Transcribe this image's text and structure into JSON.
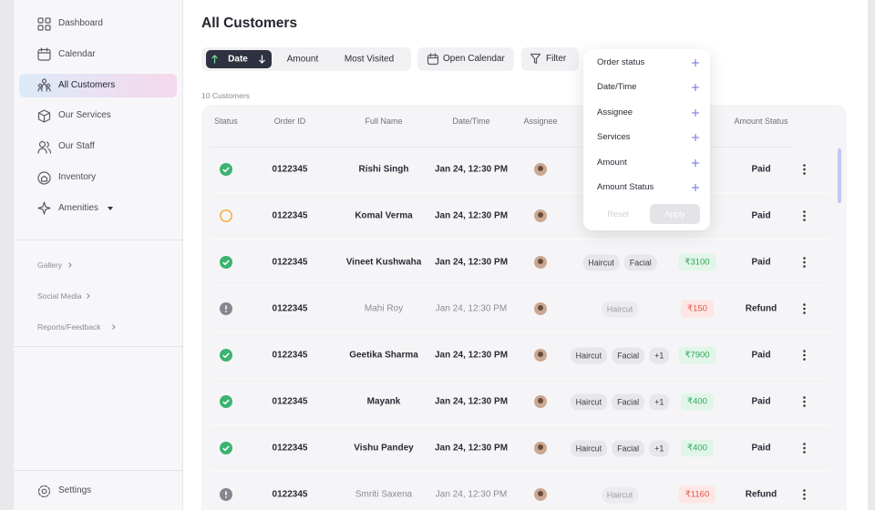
{
  "sidebar": {
    "nav": [
      "Dashboard",
      "Calendar",
      "All Customers",
      "Our Services",
      "Our Staff",
      "Inventory",
      "Amenities"
    ],
    "active": 2,
    "sections": [
      "Gallery",
      "Social Media",
      "Reports/Feedback"
    ],
    "settings": "Settings"
  },
  "main": {
    "title": "All Customers",
    "sort": [
      "Date",
      "Amount",
      "Most Visited"
    ],
    "calendar_button": "Open Calendar",
    "filter_button": "Filter",
    "count": "10 Customers",
    "table": {
      "headers": [
        "Status",
        "Order ID",
        "Full Name",
        "Date/Time",
        "Assignee"
      ],
      "amount_status_header": "Amount Status",
      "rows": [
        {
          "status": "done",
          "order_id": "0122345",
          "name": "Rishi Singh",
          "date": "Jan 24, 12:30 PM",
          "services": [],
          "amount": null,
          "amount_status": "Paid"
        },
        {
          "status": "pending",
          "order_id": "0122345",
          "name": "Komal Verma",
          "date": "Jan 24, 12:30 PM",
          "services": [],
          "amount": null,
          "amount_status": "Paid"
        },
        {
          "status": "done",
          "order_id": "0122345",
          "name": "Vineet Kushwaha",
          "date": "Jan 24, 12:30 PM",
          "services": [
            "Haircut",
            "Facial"
          ],
          "amount": "₹3100",
          "amount_status": "Paid"
        },
        {
          "status": "alert",
          "order_id": "0122345",
          "name": "Mahi Roy",
          "date": "Jan 24, 12:30 PM",
          "services": [
            "Haircut"
          ],
          "amount": "₹150",
          "amount_status": "Refund"
        },
        {
          "status": "done",
          "order_id": "0122345",
          "name": "Geetika Sharma",
          "date": "Jan 24, 12:30 PM",
          "services": [
            "Haircut",
            "Facial",
            "+1"
          ],
          "amount": "₹7900",
          "amount_status": "Paid"
        },
        {
          "status": "done",
          "order_id": "0122345",
          "name": "Mayank",
          "date": "Jan 24, 12:30 PM",
          "services": [
            "Haircut",
            "Facial",
            "+1"
          ],
          "amount": "₹400",
          "amount_status": "Paid"
        },
        {
          "status": "done",
          "order_id": "0122345",
          "name": "Vishu Pandey",
          "date": "Jan 24, 12:30 PM",
          "services": [
            "Haircut",
            "Facial",
            "+1"
          ],
          "amount": "₹400",
          "amount_status": "Paid"
        },
        {
          "status": "alert",
          "order_id": "0122345",
          "name": "Smriti Saxena",
          "date": "Jan 24, 12:30 PM",
          "services": [
            "Haircut"
          ],
          "amount": "₹1160",
          "amount_status": "Refund"
        }
      ]
    }
  },
  "filter_menu": {
    "items": [
      "Order status",
      "Date/Time",
      "Assignee",
      "Services",
      "Amount",
      "Amount Status"
    ],
    "reset": "Reset",
    "apply": "Apply"
  }
}
